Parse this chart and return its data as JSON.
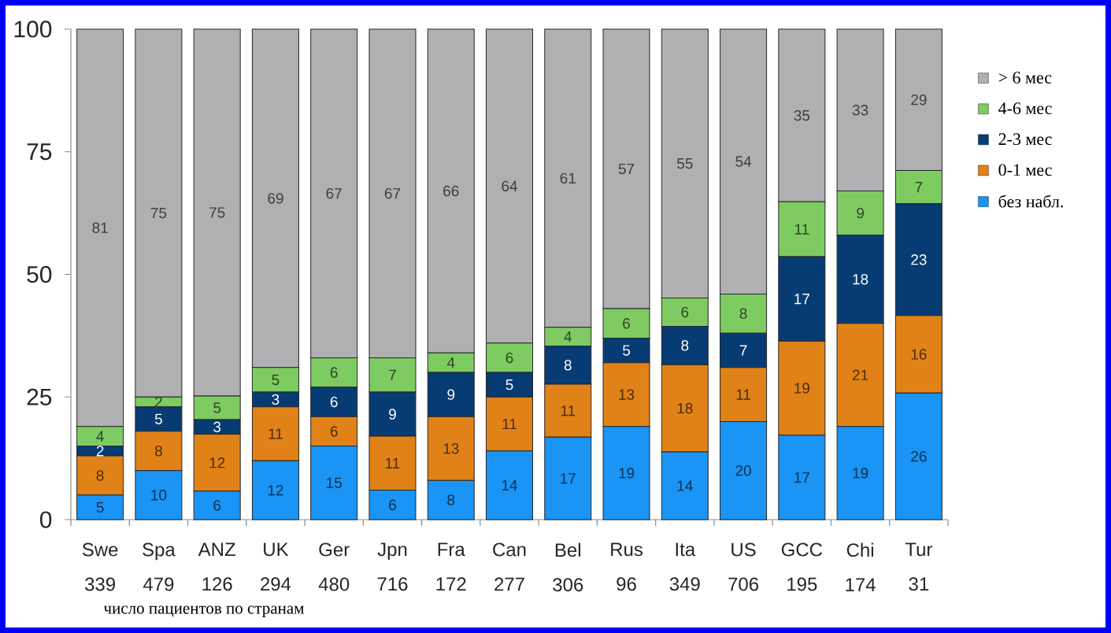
{
  "chart_data": {
    "type": "bar",
    "stacked": true,
    "categories": [
      "Swe 339",
      "Spa 479",
      "ANZ 126",
      "UK 294",
      "Ger 480",
      "Jpn 716",
      "Fra 172",
      "Can 277",
      "Bel 306",
      "Rus 96",
      "Ita 349",
      "US 706",
      "GCC 195",
      "Chi 174",
      "Tur 31"
    ],
    "xlabel": "число пациентов по странам",
    "ylim": [
      0,
      100
    ],
    "yticks": [
      0,
      25,
      50,
      75,
      100
    ],
    "legend": "right",
    "series": [
      {
        "name": "без набл.",
        "color": "#1a94f5",
        "values": [
          5,
          10,
          5.8,
          12,
          15,
          6,
          8,
          14,
          16.8,
          19,
          13.8,
          20,
          17.2,
          19,
          25.8
        ],
        "value_labels": [
          "5",
          "10",
          "6",
          "12",
          "15",
          "6",
          "8",
          "14",
          "17",
          "19",
          "14",
          "20",
          "17",
          "19",
          "26"
        ]
      },
      {
        "name": "0-1 мес",
        "color": "#e08218",
        "values": [
          8,
          8,
          11.6,
          11,
          6,
          11,
          13,
          11,
          10.8,
          13,
          17.8,
          11,
          19.2,
          21,
          15.8
        ],
        "value_labels": [
          "8",
          "8",
          "12",
          "11",
          "6",
          "11",
          "13",
          "11",
          "11",
          "13",
          "18",
          "11",
          "19",
          "21",
          "16"
        ]
      },
      {
        "name": "2-3 мес",
        "color": "#073b74",
        "values": [
          2,
          5,
          3,
          3,
          6,
          9,
          9,
          5,
          7.8,
          5,
          7.8,
          7,
          17.2,
          18,
          22.8
        ],
        "value_labels": [
          "2",
          "5",
          "3",
          "3",
          "6",
          "9",
          "9",
          "5",
          "8",
          "5",
          "8",
          "7",
          "17",
          "18",
          "23"
        ]
      },
      {
        "name": "4-6 мес",
        "color": "#7ecb62",
        "values": [
          4,
          2,
          4.8,
          5,
          6,
          7,
          4,
          6,
          3.8,
          6,
          5.8,
          8,
          11.2,
          9,
          6.8
        ],
        "value_labels": [
          "4",
          "2",
          "5",
          "5",
          "6",
          "7",
          "4",
          "6",
          "4",
          "6",
          "6",
          "8",
          "11",
          "9",
          "7"
        ]
      },
      {
        "name": "> 6 мес",
        "color": "#b0b0b2",
        "values": [
          81,
          75,
          74.8,
          69,
          67,
          67,
          66,
          64,
          60.8,
          57,
          54.8,
          54,
          35.2,
          33,
          28.8
        ],
        "value_labels": [
          "81",
          "75",
          "75",
          "69",
          "67",
          "67",
          "66",
          "64",
          "61",
          "57",
          "55",
          "54",
          "35",
          "33",
          "29"
        ]
      }
    ]
  }
}
